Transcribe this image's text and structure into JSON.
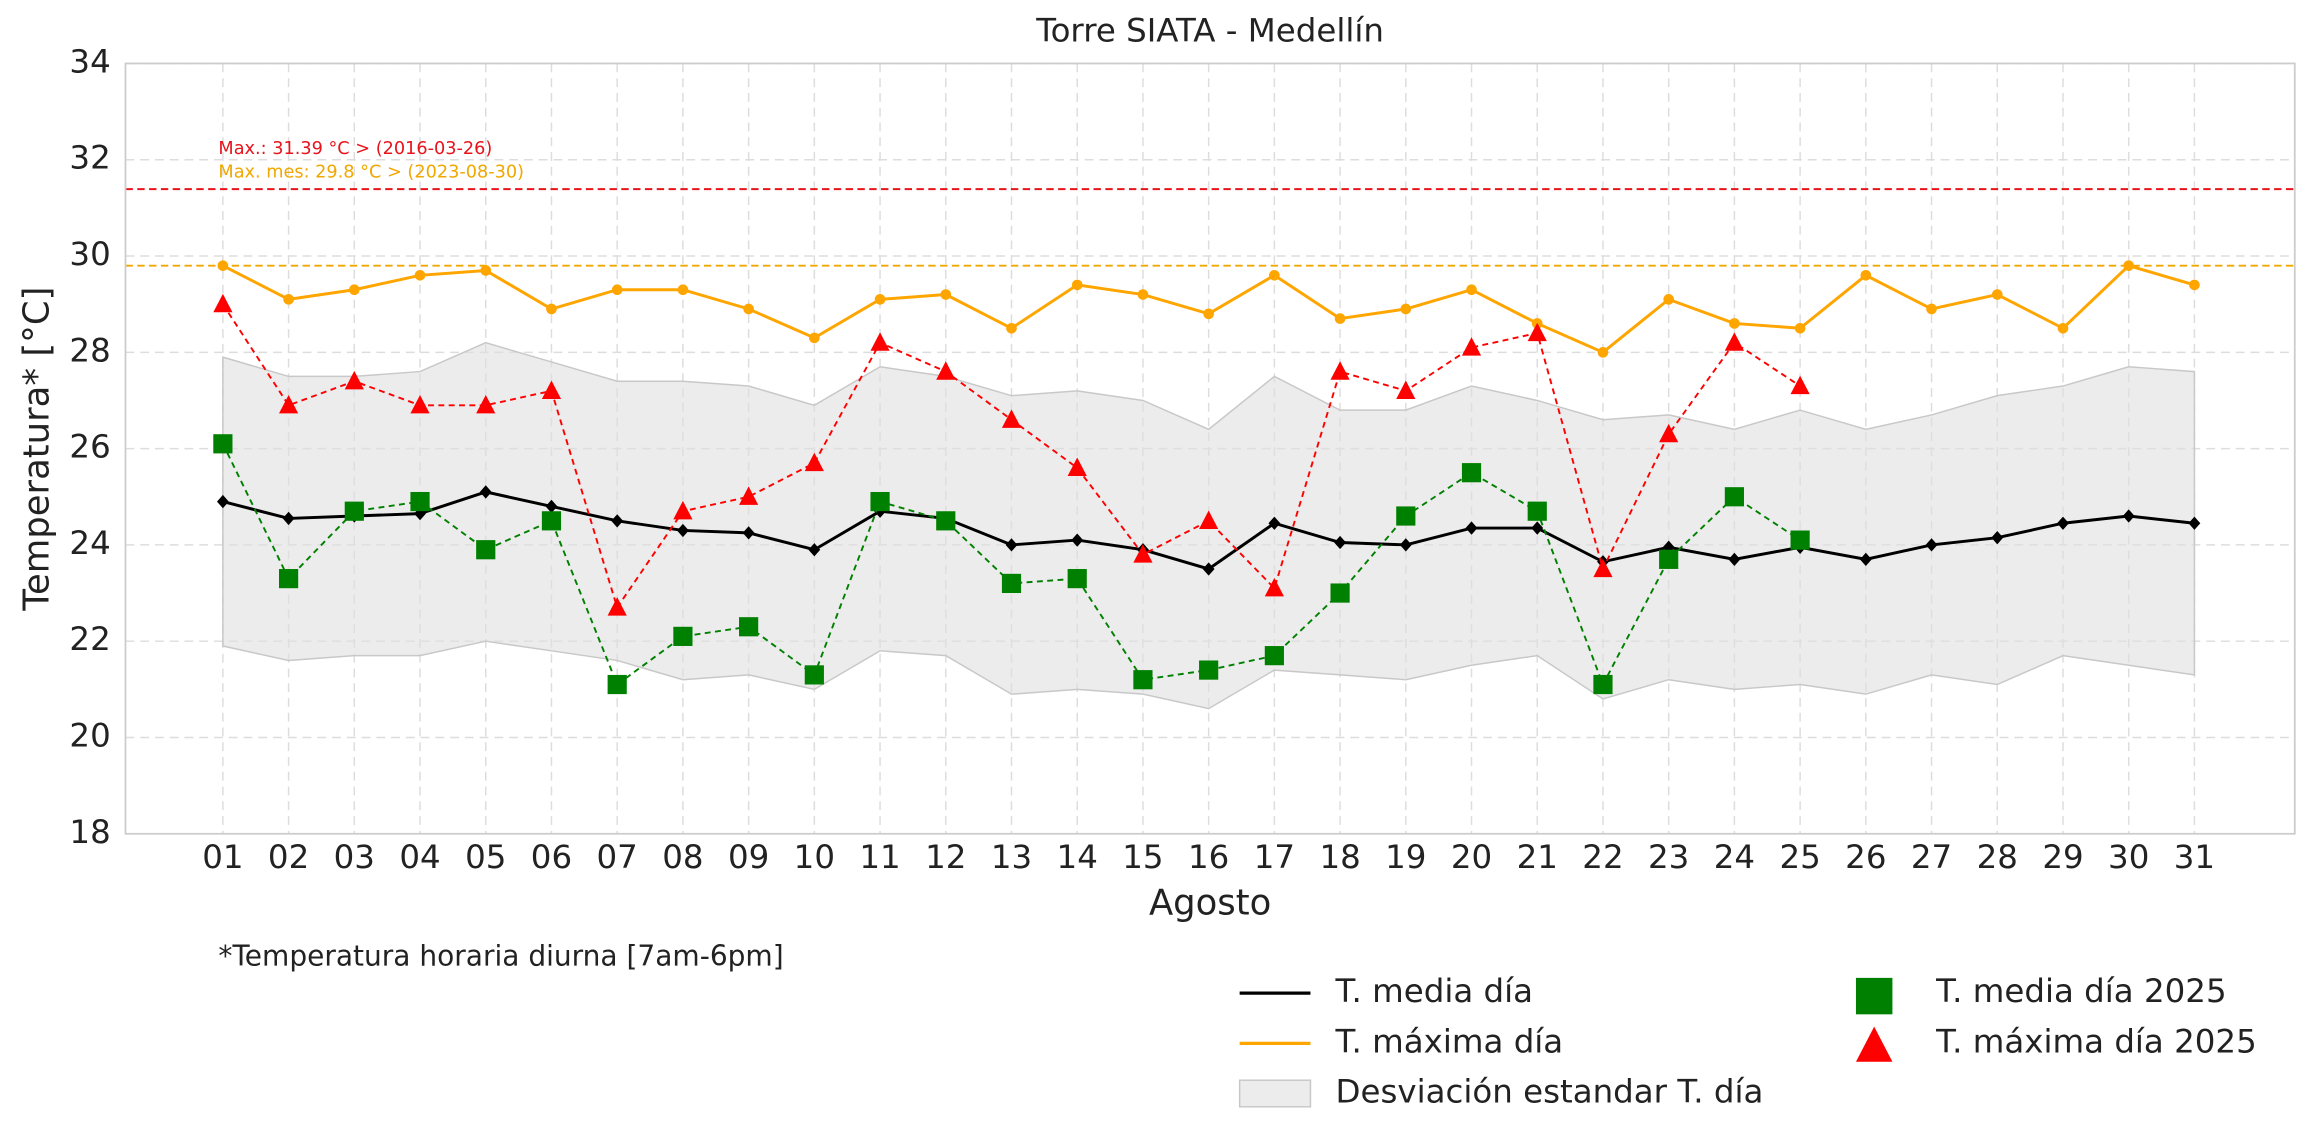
{
  "chart_data": {
    "type": "line",
    "title": "Torre SIATA - Medellín",
    "x_label": "Agosto",
    "y_label": "Temperatura* [°C]",
    "footnote": "*Temperatura horaria diurna [7am-6pm]",
    "categories": [
      "01",
      "02",
      "03",
      "04",
      "05",
      "06",
      "07",
      "08",
      "09",
      "10",
      "11",
      "12",
      "13",
      "14",
      "15",
      "16",
      "17",
      "18",
      "19",
      "20",
      "21",
      "22",
      "23",
      "24",
      "25",
      "26",
      "27",
      "28",
      "29",
      "30",
      "31"
    ],
    "ylim": [
      18,
      34
    ],
    "yticks": [
      18,
      20,
      22,
      24,
      26,
      28,
      30,
      32,
      34
    ],
    "grid": true,
    "band": {
      "name": "Desviación estandar T. día",
      "color": "#e0e0e0",
      "upper": [
        27.9,
        27.5,
        27.5,
        27.6,
        28.2,
        27.8,
        27.4,
        27.4,
        27.3,
        26.9,
        27.7,
        27.5,
        27.1,
        27.2,
        27.0,
        26.4,
        27.5,
        26.8,
        26.8,
        27.3,
        27.0,
        26.6,
        26.7,
        26.4,
        26.8,
        26.4,
        26.7,
        27.1,
        27.3,
        27.7,
        27.6
      ],
      "lower": [
        21.9,
        21.6,
        21.7,
        21.7,
        22.0,
        21.8,
        21.6,
        21.2,
        21.3,
        21.0,
        21.8,
        21.7,
        20.9,
        21.0,
        20.9,
        20.6,
        21.4,
        21.3,
        21.2,
        21.5,
        21.7,
        20.8,
        21.2,
        21.0,
        21.1,
        20.9,
        21.3,
        21.1,
        21.7,
        21.5,
        21.3
      ]
    },
    "series": [
      {
        "name": "T. media día",
        "color": "#000000",
        "marker": "diamond",
        "linestyle": "solid",
        "values": [
          24.9,
          24.55,
          24.6,
          24.65,
          25.1,
          24.8,
          24.5,
          24.3,
          24.25,
          23.9,
          24.7,
          24.55,
          24.0,
          24.1,
          23.9,
          23.5,
          24.45,
          24.05,
          24.0,
          24.35,
          24.35,
          23.65,
          23.95,
          23.7,
          23.95,
          23.7,
          24.0,
          24.15,
          24.45,
          24.6,
          24.45
        ]
      },
      {
        "name": "T. máxima día",
        "color": "#ffa500",
        "marker": "circle",
        "linestyle": "solid",
        "values": [
          29.8,
          29.1,
          29.3,
          29.6,
          29.7,
          28.9,
          29.3,
          29.3,
          28.9,
          28.3,
          29.1,
          29.2,
          28.5,
          29.4,
          29.2,
          28.8,
          29.6,
          28.7,
          28.9,
          29.3,
          28.6,
          28.0,
          29.1,
          28.6,
          28.5,
          29.6,
          28.9,
          29.2,
          28.5,
          29.8,
          29.4
        ]
      },
      {
        "name": "T. media día 2025",
        "color": "#008000",
        "marker": "square",
        "linestyle": "dashed",
        "values": [
          26.1,
          23.3,
          24.7,
          24.9,
          23.9,
          24.5,
          21.1,
          22.1,
          22.3,
          21.3,
          24.9,
          24.5,
          23.2,
          23.3,
          21.2,
          21.4,
          21.7,
          23.0,
          24.6,
          25.5,
          24.7,
          21.1,
          23.7,
          25.0,
          24.1,
          null,
          null,
          null,
          null,
          null,
          null
        ]
      },
      {
        "name": "T. máxima día 2025",
        "color": "#ff0000",
        "marker": "triangle",
        "linestyle": "dashed",
        "values": [
          29.0,
          26.9,
          27.4,
          26.9,
          26.9,
          27.2,
          22.7,
          24.7,
          25.0,
          25.7,
          28.2,
          27.6,
          26.6,
          25.6,
          23.8,
          24.5,
          23.1,
          27.6,
          27.2,
          28.1,
          28.4,
          23.5,
          26.3,
          28.2,
          27.3,
          null,
          null,
          null,
          null,
          null,
          null
        ]
      }
    ],
    "reference_lines": [
      {
        "value": 31.39,
        "color": "#e8141c",
        "label": "Max.: 31.39 °C  >  (2016-03-26)"
      },
      {
        "value": 29.8,
        "color": "#f0a800",
        "label": "Max. mes: 29.8 °C  >  (2023-08-30)"
      }
    ]
  }
}
